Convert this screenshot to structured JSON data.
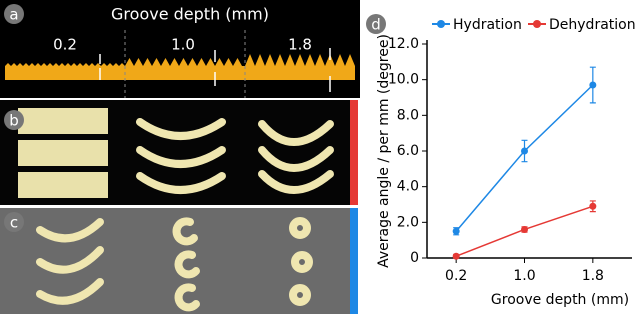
{
  "panels": {
    "a": {
      "label": "a",
      "title": "Groove depth (mm)",
      "depths": [
        "0.2",
        "1.0",
        "1.8"
      ]
    },
    "b": {
      "label": "b"
    },
    "c": {
      "label": "c"
    },
    "d": {
      "label": "d"
    }
  },
  "chart_data": {
    "type": "line",
    "categories": [
      "0.2",
      "1.0",
      "1.8"
    ],
    "series": [
      {
        "name": "Hydration",
        "color": "#1e88e5",
        "values": [
          1.5,
          6.0,
          9.7
        ],
        "errors": [
          0.2,
          0.6,
          1.0
        ]
      },
      {
        "name": "Dehydration",
        "color": "#e53935",
        "values": [
          0.1,
          1.6,
          2.9
        ],
        "errors": [
          0.1,
          0.15,
          0.3
        ]
      }
    ],
    "y_label": "Average angle / per mm (degree)",
    "x_label": "Groove depth (mm)",
    "ylim": [
      0,
      12
    ],
    "yticks": [
      0,
      {
        "value": 2,
        "label": "2.0"
      },
      {
        "value": 4,
        "label": "4.0"
      },
      {
        "value": 6,
        "label": "6.0"
      },
      {
        "value": 8,
        "label": "8.0"
      },
      {
        "value": 10,
        "label": "10.0"
      },
      {
        "value": 12,
        "label": "12.0"
      }
    ],
    "legend": "top"
  }
}
